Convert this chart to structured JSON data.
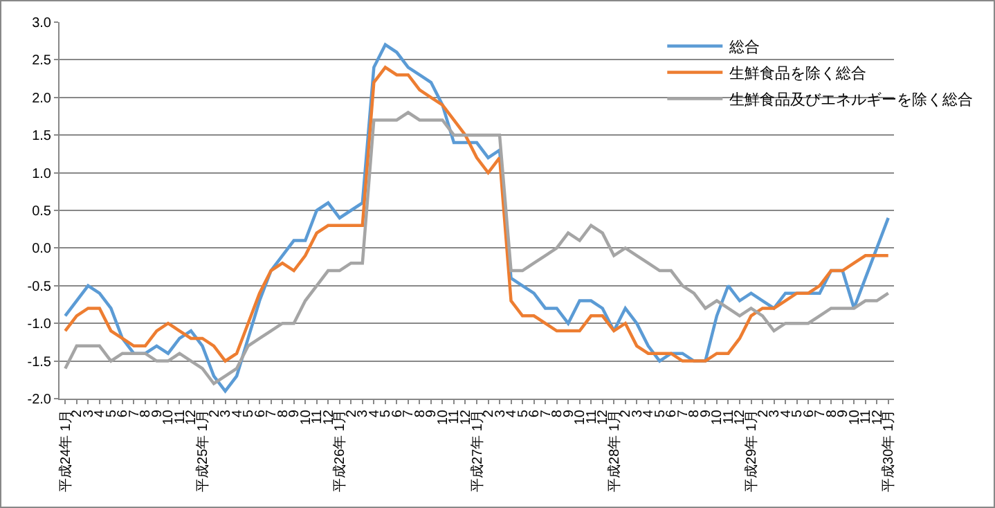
{
  "chart_data": {
    "type": "line",
    "categories": [
      "平成24年 1月",
      "2",
      "3",
      "4",
      "5",
      "6",
      "7",
      "8",
      "9",
      "10",
      "11",
      "12",
      "平成25年 1月",
      "2",
      "3",
      "4",
      "5",
      "6",
      "7",
      "8",
      "9",
      "10",
      "11",
      "12",
      "平成26年 1月",
      "2",
      "3",
      "4",
      "5",
      "6",
      "7",
      "8",
      "9",
      "10",
      "11",
      "12",
      "平成27年 1月",
      "2",
      "3",
      "4",
      "5",
      "6",
      "7",
      "8",
      "9",
      "10",
      "11",
      "12",
      "平成28年 1月",
      "2",
      "3",
      "4",
      "5",
      "6",
      "7",
      "8",
      "9",
      "10",
      "11",
      "12",
      "平成29年 1月",
      "2",
      "3",
      "4",
      "5",
      "6",
      "7",
      "8",
      "9",
      "10",
      "11",
      "12",
      "平成30年 1月"
    ],
    "series": [
      {
        "name": "総合",
        "color": "#5b9bd5",
        "values": [
          -0.9,
          -0.7,
          -0.5,
          -0.6,
          -0.8,
          -1.2,
          -1.4,
          -1.4,
          -1.3,
          -1.4,
          -1.2,
          -1.1,
          -1.3,
          -1.7,
          -1.9,
          -1.7,
          -1.2,
          -0.7,
          -0.3,
          -0.1,
          0.1,
          0.1,
          0.5,
          0.6,
          0.4,
          0.5,
          0.6,
          2.4,
          2.7,
          2.6,
          2.4,
          2.3,
          2.2,
          1.9,
          1.4,
          1.4,
          1.4,
          1.2,
          1.3,
          -0.4,
          -0.5,
          -0.6,
          -0.8,
          -0.8,
          -1.0,
          -0.7,
          -0.7,
          -0.8,
          -1.1,
          -0.8,
          -1.0,
          -1.3,
          -1.5,
          -1.4,
          -1.4,
          -1.5,
          -1.5,
          -0.9,
          -0.5,
          -0.7,
          -0.6,
          -0.7,
          -0.8,
          -0.6,
          -0.6,
          -0.6,
          -0.6,
          -0.3,
          -0.3,
          -0.8,
          -0.4,
          0.0,
          0.4
        ]
      },
      {
        "name": "生鮮食品を除く総合",
        "color": "#ed7d31",
        "values": [
          -1.1,
          -0.9,
          -0.8,
          -0.8,
          -1.1,
          -1.2,
          -1.3,
          -1.3,
          -1.1,
          -1.0,
          -1.1,
          -1.2,
          -1.2,
          -1.3,
          -1.5,
          -1.4,
          -1.0,
          -0.6,
          -0.3,
          -0.2,
          -0.3,
          -0.1,
          0.2,
          0.3,
          0.3,
          0.3,
          0.3,
          2.2,
          2.4,
          2.3,
          2.3,
          2.1,
          2.0,
          1.9,
          1.7,
          1.5,
          1.2,
          1.0,
          1.2,
          -0.7,
          -0.9,
          -0.9,
          -1.0,
          -1.1,
          -1.1,
          -1.1,
          -0.9,
          -0.9,
          -1.1,
          -1.0,
          -1.3,
          -1.4,
          -1.4,
          -1.4,
          -1.5,
          -1.5,
          -1.5,
          -1.4,
          -1.4,
          -1.2,
          -0.9,
          -0.8,
          -0.8,
          -0.7,
          -0.6,
          -0.6,
          -0.5,
          -0.3,
          -0.3,
          -0.2,
          -0.1,
          -0.1,
          -0.1
        ]
      },
      {
        "name": "生鮮食品及びエネルギーを除く総合",
        "color": "#a5a5a5",
        "values": [
          -1.6,
          -1.3,
          -1.3,
          -1.3,
          -1.5,
          -1.4,
          -1.4,
          -1.4,
          -1.5,
          -1.5,
          -1.4,
          -1.5,
          -1.6,
          -1.8,
          -1.7,
          -1.6,
          -1.3,
          -1.2,
          -1.1,
          -1.0,
          -1.0,
          -0.7,
          -0.5,
          -0.3,
          -0.3,
          -0.2,
          -0.2,
          1.7,
          1.7,
          1.7,
          1.8,
          1.7,
          1.7,
          1.7,
          1.5,
          1.5,
          1.5,
          1.5,
          1.5,
          -0.3,
          -0.3,
          -0.2,
          -0.1,
          0.0,
          0.2,
          0.1,
          0.3,
          0.2,
          -0.1,
          0.0,
          -0.1,
          -0.2,
          -0.3,
          -0.3,
          -0.5,
          -0.6,
          -0.8,
          -0.7,
          -0.8,
          -0.9,
          -0.8,
          -0.9,
          -1.1,
          -1.0,
          -1.0,
          -1.0,
          -0.9,
          -0.8,
          -0.8,
          -0.8,
          -0.7,
          -0.7,
          -0.6
        ]
      }
    ],
    "ylim": [
      -2.0,
      3.0
    ],
    "yticks": [
      {
        "value": -2,
        "label": "-2.0"
      },
      {
        "value": -1.5,
        "label": "-1.5"
      },
      {
        "value": -1,
        "label": "-1.0"
      },
      {
        "value": -0.5,
        "label": "-0.5"
      },
      {
        "value": 0,
        "label": "0.0"
      },
      {
        "value": 0.5,
        "label": "0.5"
      },
      {
        "value": 1,
        "label": "1.0"
      },
      {
        "value": 1.5,
        "label": "1.5"
      },
      {
        "value": 2,
        "label": "2.0"
      },
      {
        "value": 2.5,
        "label": "2.5"
      },
      {
        "value": 3,
        "label": "3.0"
      }
    ],
    "grid": "y",
    "legend": "top right",
    "marker": "none",
    "line_style": "solid"
  }
}
